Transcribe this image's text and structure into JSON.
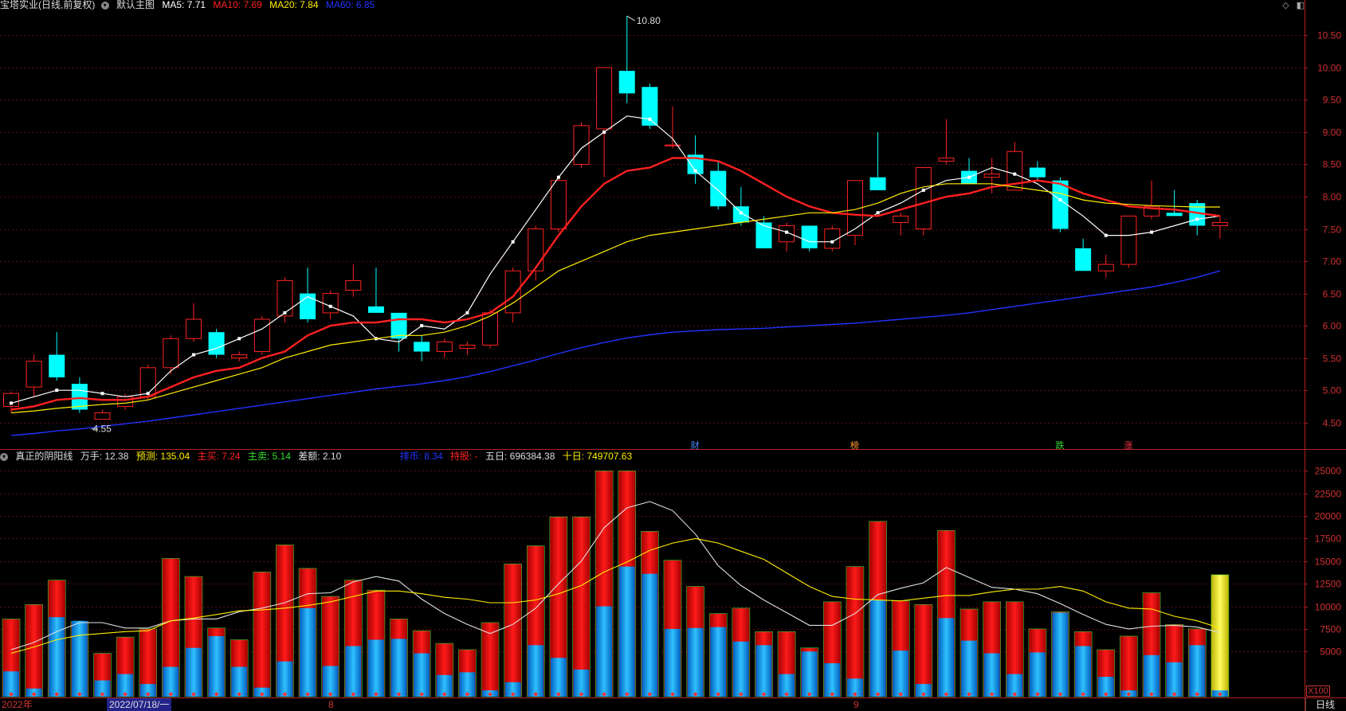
{
  "top_header": {
    "title": "宝塔实业(日线,前复权)",
    "main_label": "默认主图",
    "ma5": "MA5: 7.71",
    "ma10": "MA10: 7.69",
    "ma20": "MA20: 7.84",
    "ma60": "MA60: 6.85"
  },
  "sub_header": {
    "indicator": "真正的阴阳线",
    "wanshou": "万手: 12.38",
    "yuce": "预测: 135.04",
    "zhumai": "主买: 7.24",
    "zhumai2": "主卖: 5.14",
    "chae": "差额: 2.10",
    "paibi": "排币: 8.34",
    "chigu": "持股: -",
    "wuri": "五日: 696384.38",
    "shiri": "十日: 749707.63"
  },
  "top_icons": [
    "◇",
    "◧"
  ],
  "date_axis": {
    "year": "2022年",
    "cursor_date": "2022/07/18/一",
    "month_8": "8",
    "month_9": "9"
  },
  "period_label": "日线",
  "vol_multiplier": "X100",
  "markers": [
    {
      "text": "财",
      "color": "#4a8cff",
      "index": 30
    },
    {
      "text": "榜",
      "color": "#ff9933",
      "index": 37
    },
    {
      "text": "跌",
      "color": "#33dd33",
      "index": 46
    },
    {
      "text": "涨",
      "color": "#ff3344",
      "index": 49
    }
  ],
  "colors": {
    "up": "#ff2222",
    "down": "#00ffff",
    "ma5": "#ffffff",
    "ma10": "#ff2020",
    "ma20": "#ffee00",
    "ma60": "#2233ff",
    "axis": "#b02020",
    "grid": "#5a1010",
    "vol_blue": "#1aa0ff",
    "vol_yellow": "#ffee33"
  },
  "chart_data": [
    {
      "type": "candlestick",
      "title": "宝塔实业(日线,前复权)",
      "y_ticks": [
        "4.50",
        "5.00",
        "5.50",
        "6.00",
        "6.50",
        "7.00",
        "7.50",
        "8.00",
        "8.50",
        "9.00",
        "9.50",
        "10.00",
        "10.50"
      ],
      "ylim": [
        4.2,
        10.85
      ],
      "annotations": [
        {
          "text": "10.80",
          "index": 27,
          "value": 10.8
        },
        {
          "text": "4.55",
          "index": 4,
          "value": 4.55
        }
      ],
      "ohlc": [
        [
          4.75,
          4.98,
          4.65,
          4.95
        ],
        [
          5.05,
          5.55,
          4.9,
          5.45
        ],
        [
          5.55,
          5.9,
          5.15,
          5.2
        ],
        [
          5.1,
          5.2,
          4.65,
          4.7
        ],
        [
          4.55,
          4.7,
          4.55,
          4.65
        ],
        [
          4.75,
          4.95,
          4.7,
          4.9
        ],
        [
          4.9,
          5.4,
          4.85,
          5.35
        ],
        [
          5.35,
          5.85,
          5.25,
          5.8
        ],
        [
          5.8,
          6.35,
          5.75,
          6.1
        ],
        [
          5.9,
          5.95,
          5.5,
          5.55
        ],
        [
          5.5,
          5.6,
          5.45,
          5.55
        ],
        [
          5.6,
          6.15,
          5.55,
          6.1
        ],
        [
          6.15,
          6.75,
          6.05,
          6.7
        ],
        [
          6.5,
          6.9,
          6.05,
          6.1
        ],
        [
          6.2,
          6.55,
          6.1,
          6.5
        ],
        [
          6.55,
          6.95,
          6.45,
          6.7
        ],
        [
          6.3,
          6.9,
          6.2,
          6.2
        ],
        [
          6.2,
          6.2,
          5.6,
          5.8
        ],
        [
          5.75,
          5.85,
          5.45,
          5.6
        ],
        [
          5.6,
          5.8,
          5.5,
          5.75
        ],
        [
          5.65,
          5.75,
          5.55,
          5.7
        ],
        [
          5.7,
          6.25,
          5.65,
          6.2
        ],
        [
          6.2,
          6.9,
          6.05,
          6.85
        ],
        [
          6.85,
          7.55,
          6.7,
          7.5
        ],
        [
          7.5,
          8.3,
          7.45,
          8.25
        ],
        [
          8.5,
          9.15,
          8.45,
          9.1
        ],
        [
          9.05,
          10.0,
          8.3,
          10.0
        ],
        [
          9.95,
          10.8,
          9.45,
          9.6
        ],
        [
          9.7,
          9.75,
          9.05,
          9.1
        ],
        [
          8.8,
          9.4,
          8.75,
          8.8
        ],
        [
          8.65,
          8.95,
          8.2,
          8.35
        ],
        [
          8.4,
          8.55,
          7.8,
          7.85
        ],
        [
          7.85,
          8.15,
          7.55,
          7.6
        ],
        [
          7.6,
          7.7,
          7.2,
          7.2
        ],
        [
          7.3,
          7.6,
          7.15,
          7.55
        ],
        [
          7.55,
          7.55,
          7.15,
          7.2
        ],
        [
          7.2,
          7.55,
          7.15,
          7.5
        ],
        [
          7.4,
          8.25,
          7.25,
          8.25
        ],
        [
          8.3,
          9.0,
          8.1,
          8.1
        ],
        [
          7.6,
          7.75,
          7.4,
          7.7
        ],
        [
          7.5,
          8.45,
          7.4,
          8.45
        ],
        [
          8.55,
          9.2,
          8.5,
          8.6
        ],
        [
          8.4,
          8.6,
          8.2,
          8.2
        ],
        [
          8.3,
          8.6,
          8.05,
          8.35
        ],
        [
          8.1,
          8.85,
          8.1,
          8.7
        ],
        [
          8.45,
          8.55,
          8.25,
          8.3
        ],
        [
          8.25,
          8.3,
          7.45,
          7.5
        ],
        [
          7.2,
          7.35,
          6.85,
          6.85
        ],
        [
          6.85,
          7.1,
          6.75,
          6.95
        ],
        [
          6.95,
          7.7,
          6.9,
          7.7
        ],
        [
          7.7,
          8.25,
          7.65,
          7.85
        ],
        [
          7.75,
          8.1,
          7.7,
          7.7
        ],
        [
          7.9,
          7.95,
          7.4,
          7.55
        ],
        [
          7.55,
          7.7,
          7.35,
          7.6
        ]
      ],
      "series": [
        {
          "name": "MA5",
          "values": [
            4.8,
            4.9,
            5.0,
            5.0,
            4.95,
            4.9,
            4.95,
            5.3,
            5.55,
            5.65,
            5.8,
            5.95,
            6.2,
            6.45,
            6.3,
            6.15,
            5.8,
            5.75,
            6.0,
            5.95,
            6.2,
            6.8,
            7.3,
            7.8,
            8.3,
            8.75,
            9.0,
            9.25,
            9.2,
            8.9,
            8.4,
            8.1,
            7.75,
            7.55,
            7.45,
            7.3,
            7.3,
            7.5,
            7.75,
            7.9,
            8.1,
            8.25,
            8.3,
            8.45,
            8.35,
            8.2,
            7.95,
            7.7,
            7.4,
            7.4,
            7.45,
            7.55,
            7.65,
            7.7
          ]
        },
        {
          "name": "MA10",
          "values": [
            4.7,
            4.75,
            4.85,
            4.88,
            4.85,
            4.85,
            4.9,
            5.05,
            5.2,
            5.3,
            5.35,
            5.5,
            5.6,
            5.85,
            6.0,
            6.05,
            6.05,
            6.1,
            6.1,
            6.05,
            6.1,
            6.2,
            6.45,
            6.9,
            7.4,
            7.85,
            8.2,
            8.4,
            8.45,
            8.6,
            8.6,
            8.55,
            8.4,
            8.2,
            8.0,
            7.85,
            7.75,
            7.72,
            7.7,
            7.8,
            7.9,
            8.0,
            8.05,
            8.15,
            8.2,
            8.25,
            8.2,
            8.05,
            7.95,
            7.85,
            7.82,
            7.8,
            7.75,
            7.7
          ]
        },
        {
          "name": "MA20",
          "values": [
            4.65,
            4.68,
            4.72,
            4.75,
            4.78,
            4.8,
            4.85,
            4.95,
            5.05,
            5.15,
            5.25,
            5.35,
            5.5,
            5.6,
            5.7,
            5.75,
            5.8,
            5.85,
            5.85,
            5.9,
            6.0,
            6.15,
            6.35,
            6.6,
            6.85,
            7.0,
            7.15,
            7.3,
            7.4,
            7.45,
            7.5,
            7.55,
            7.6,
            7.65,
            7.7,
            7.75,
            7.75,
            7.8,
            7.9,
            8.05,
            8.15,
            8.2,
            8.2,
            8.2,
            8.15,
            8.1,
            8.05,
            7.95,
            7.9,
            7.88,
            7.86,
            7.85,
            7.84,
            7.84
          ]
        },
        {
          "name": "MA60",
          "values": [
            4.3,
            4.33,
            4.37,
            4.4,
            4.44,
            4.48,
            4.52,
            4.57,
            4.62,
            4.67,
            4.72,
            4.77,
            4.82,
            4.87,
            4.92,
            4.97,
            5.02,
            5.06,
            5.1,
            5.15,
            5.21,
            5.29,
            5.38,
            5.47,
            5.57,
            5.66,
            5.74,
            5.81,
            5.86,
            5.9,
            5.92,
            5.94,
            5.95,
            5.96,
            5.98,
            6.0,
            6.02,
            6.04,
            6.07,
            6.1,
            6.13,
            6.16,
            6.2,
            6.25,
            6.3,
            6.35,
            6.4,
            6.45,
            6.5,
            6.55,
            6.6,
            6.67,
            6.75,
            6.85
          ]
        }
      ]
    },
    {
      "type": "bar",
      "title": "真正的阴阳线",
      "y_ticks": [
        "5000",
        "7500",
        "10000",
        "12500",
        "15000",
        "17500",
        "20000",
        "22500",
        "25000"
      ],
      "ylim": [
        0,
        26000
      ],
      "total_volume": [
        8600,
        10200,
        12900,
        8300,
        4800,
        6600,
        7500,
        15300,
        13300,
        7600,
        6300,
        13800,
        16800,
        14200,
        11100,
        12900,
        11800,
        8600,
        7300,
        5900,
        5200,
        8200,
        14700,
        16700,
        19900,
        19900,
        25000,
        25000,
        18300,
        15100,
        12200,
        9200,
        9800,
        7200,
        7200,
        5400,
        10500,
        14400,
        19400,
        10600,
        10200,
        18400,
        9700,
        10500,
        10500,
        7500,
        9400,
        7200,
        5200,
        6700,
        11500,
        8000,
        7500,
        13500
      ],
      "lower_volume": [
        2800,
        900,
        8800,
        8400,
        1800,
        2500,
        1400,
        3300,
        5400,
        6700,
        3300,
        1000,
        3900,
        9800,
        3400,
        5600,
        6300,
        6400,
        4800,
        2400,
        2700,
        700,
        1600,
        5700,
        4300,
        3000,
        10000,
        14400,
        13600,
        7500,
        7600,
        7700,
        6100,
        5700,
        2500,
        5000,
        3700,
        2000,
        10700,
        5100,
        1400,
        8700,
        6200,
        4800,
        2500,
        4900,
        9300,
        5600,
        2200,
        700,
        4600,
        3800,
        5700,
        700
      ],
      "series": [
        {
          "name": "五日",
          "values": [
            5200,
            6000,
            7200,
            8200,
            8200,
            7600,
            7600,
            8400,
            8600,
            8600,
            9400,
            9800,
            10400,
            11400,
            11500,
            12700,
            13300,
            12800,
            10800,
            9200,
            8000,
            7000,
            8000,
            9800,
            12500,
            15000,
            18700,
            20900,
            21600,
            20600,
            18000,
            14500,
            12300,
            10700,
            9300,
            7900,
            7900,
            9200,
            11300,
            12000,
            12600,
            14300,
            13200,
            12100,
            11900,
            11400,
            10300,
            9100,
            8000,
            7500,
            7800,
            7900,
            7700,
            7100
          ]
        },
        {
          "name": "十日",
          "values": [
            4800,
            5500,
            6300,
            6800,
            7000,
            7200,
            7300,
            8400,
            8700,
            9100,
            9500,
            9600,
            9800,
            10100,
            10500,
            11100,
            11700,
            11700,
            11400,
            11000,
            10800,
            10400,
            10400,
            10700,
            11400,
            12300,
            13800,
            14900,
            16200,
            17000,
            17500,
            17000,
            16100,
            15200,
            13700,
            12200,
            11100,
            10800,
            10700,
            10600,
            10900,
            11200,
            11200,
            11600,
            11900,
            11900,
            12200,
            11700,
            10500,
            9800,
            9700,
            8900,
            8400,
            7600
          ]
        }
      ]
    }
  ]
}
